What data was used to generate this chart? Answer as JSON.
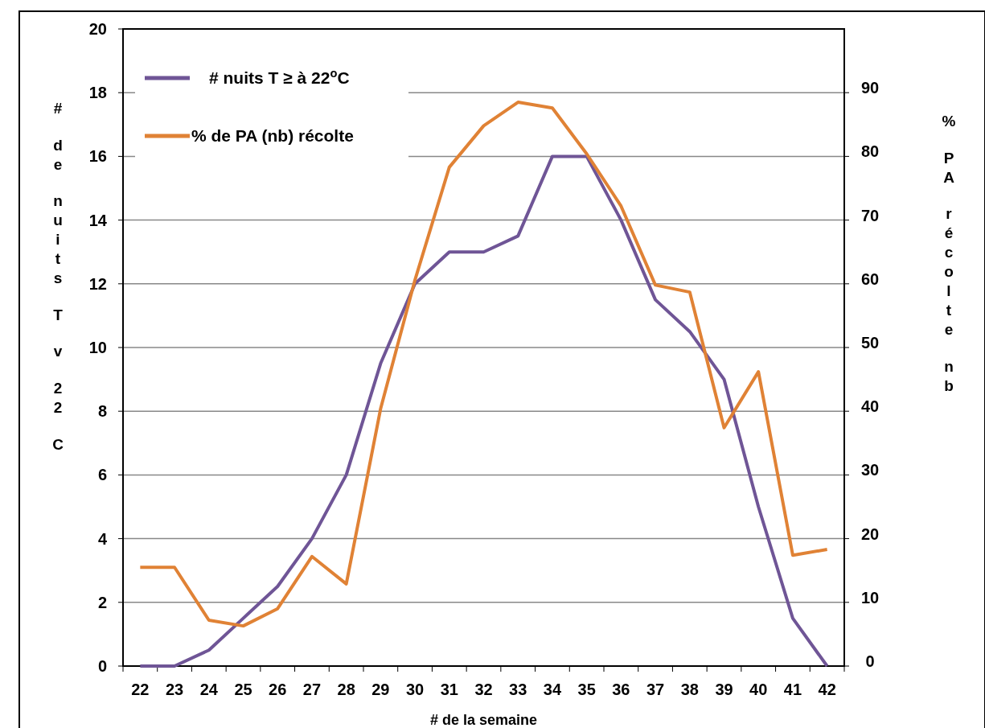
{
  "chart_data": {
    "type": "line",
    "xlabel": "# de la semaine",
    "ylabel": "# de nuits T v 22 C",
    "y2label": "% PA récolte nb",
    "categories": [
      "22",
      "23",
      "24",
      "25",
      "26",
      "27",
      "28",
      "29",
      "30",
      "31",
      "32",
      "33",
      "34",
      "35",
      "36",
      "37",
      "38",
      "39",
      "40",
      "41",
      "42"
    ],
    "series": [
      {
        "name": "# nuits T ≥ à 22$^{o}$C",
        "color": "#6f5596",
        "values": [
          0,
          0,
          0.5,
          1.5,
          2.5,
          4,
          6,
          9.5,
          12,
          13,
          13,
          13.5,
          16,
          16,
          14,
          11.5,
          10.5,
          9,
          5,
          1.5,
          0
        ]
      },
      {
        "name": "% de PA (nb) récolte",
        "color": "#e08235",
        "axis": "y2",
        "values": [
          15.5,
          15.5,
          7.2,
          6.3,
          9,
          17.2,
          12.9,
          40.4,
          60.6,
          78.3,
          84.8,
          88.5,
          87.6,
          80.4,
          72.2,
          59.8,
          58.7,
          37.4,
          46.2,
          17.4,
          18.3
        ]
      }
    ],
    "ylim": [
      0,
      20
    ],
    "yticks": [
      0,
      2,
      4,
      6,
      8,
      10,
      12,
      14,
      16,
      18,
      20
    ],
    "y2lim": [
      0,
      100
    ],
    "y2ticks": [
      0,
      10,
      20,
      30,
      40,
      50,
      60,
      70,
      80,
      90
    ],
    "grid": "y",
    "legend": "top left",
    "marker": "none",
    "line_style": "solid"
  }
}
